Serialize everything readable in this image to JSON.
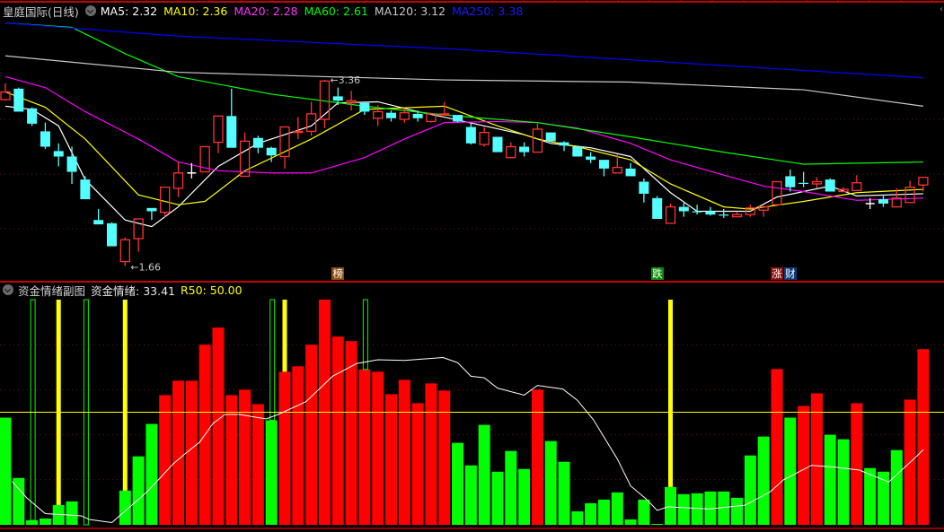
{
  "header": {
    "title": "皇庭国际(日线)",
    "ma": [
      {
        "label": "MA5: 2.32",
        "color": "#ffffff"
      },
      {
        "label": "MA10: 2.36",
        "color": "#ffff00"
      },
      {
        "label": "MA20: 2.28",
        "color": "#ff33ff"
      },
      {
        "label": "MA60: 2.61",
        "color": "#00ff00"
      },
      {
        "label": "MA120: 3.12",
        "color": "#c8c8c8"
      },
      {
        "label": "MA250: 3.38",
        "color": "#1a1aff"
      }
    ]
  },
  "indicator_header": {
    "title": "资金情绪副图",
    "value_label": "资金情绪: 33.41",
    "r50_label": "R50: 50.00"
  },
  "markers": [
    {
      "text": "榜",
      "index": 25,
      "color": "#8a4a12"
    },
    {
      "text": "跌",
      "index": 49,
      "color": "#0a8a0a"
    },
    {
      "text": "涨",
      "index": 58,
      "color": "#8a0a0a"
    },
    {
      "text": "财",
      "index": 59,
      "color": "#0a3a7a"
    }
  ],
  "chart_data": [
    {
      "type": "candlestick",
      "gridlines": [
        3.0,
        2.5,
        2.0
      ],
      "annotations": [
        {
          "text": "3.36",
          "index": 24,
          "value": 3.36,
          "kind": "high"
        },
        {
          "text": "1.66",
          "index": 9,
          "value": 1.66,
          "kind": "low"
        }
      ],
      "colors": {
        "up": "#ff3232",
        "down": "#54ffff",
        "flat": "#ffffff"
      },
      "ohlc": [
        [
          3.18,
          3.33,
          3.17,
          3.25
        ],
        [
          3.28,
          3.29,
          3.07,
          3.07
        ],
        [
          3.1,
          3.11,
          2.94,
          2.96
        ],
        [
          2.89,
          2.97,
          2.73,
          2.75
        ],
        [
          2.71,
          2.78,
          2.57,
          2.66
        ],
        [
          2.66,
          2.75,
          2.41,
          2.52
        ],
        [
          2.45,
          2.48,
          2.27,
          2.27
        ],
        [
          2.08,
          2.18,
          2.04,
          2.04
        ],
        [
          2.05,
          2.06,
          1.84,
          1.84
        ],
        [
          1.7,
          1.92,
          1.66,
          1.9
        ],
        [
          1.91,
          2.09,
          1.79,
          2.09
        ],
        [
          2.19,
          2.19,
          2.08,
          2.16
        ],
        [
          2.15,
          2.38,
          2.11,
          2.38
        ],
        [
          2.37,
          2.61,
          2.29,
          2.51
        ],
        [
          2.51,
          2.6,
          2.46,
          2.51
        ],
        [
          2.52,
          2.75,
          2.52,
          2.75
        ],
        [
          2.79,
          3.03,
          2.69,
          3.03
        ],
        [
          3.03,
          3.28,
          2.74,
          2.74
        ],
        [
          2.48,
          2.88,
          2.48,
          2.8
        ],
        [
          2.83,
          2.85,
          2.69,
          2.74
        ],
        [
          2.74,
          2.75,
          2.61,
          2.67
        ],
        [
          2.66,
          2.93,
          2.55,
          2.93
        ],
        [
          2.88,
          3.02,
          2.82,
          2.89
        ],
        [
          2.89,
          3.16,
          2.85,
          3.05
        ],
        [
          3.0,
          3.36,
          2.92,
          3.35
        ],
        [
          3.21,
          3.29,
          3.13,
          3.17
        ],
        [
          3.15,
          3.26,
          3.08,
          3.17
        ],
        [
          3.15,
          3.15,
          3.04,
          3.07
        ],
        [
          3.01,
          3.13,
          2.94,
          3.07
        ],
        [
          3.06,
          3.08,
          2.98,
          3.01
        ],
        [
          3.0,
          3.1,
          2.97,
          3.06
        ],
        [
          3.05,
          3.08,
          2.98,
          3.01
        ],
        [
          2.98,
          3.05,
          2.97,
          3.05
        ],
        [
          3.04,
          3.16,
          3.04,
          3.05
        ],
        [
          3.04,
          3.04,
          2.97,
          2.98
        ],
        [
          2.93,
          2.96,
          2.77,
          2.78
        ],
        [
          2.77,
          2.93,
          2.75,
          2.88
        ],
        [
          2.84,
          2.84,
          2.7,
          2.7
        ],
        [
          2.65,
          2.79,
          2.65,
          2.75
        ],
        [
          2.75,
          2.79,
          2.66,
          2.7
        ],
        [
          2.7,
          2.96,
          2.7,
          2.91
        ],
        [
          2.88,
          2.88,
          2.79,
          2.8
        ],
        [
          2.79,
          2.8,
          2.71,
          2.76
        ],
        [
          2.75,
          2.75,
          2.66,
          2.66
        ],
        [
          2.66,
          2.7,
          2.6,
          2.63
        ],
        [
          2.63,
          2.63,
          2.48,
          2.55
        ],
        [
          2.51,
          2.68,
          2.51,
          2.56
        ],
        [
          2.55,
          2.6,
          2.48,
          2.48
        ],
        [
          2.43,
          2.46,
          2.24,
          2.32
        ],
        [
          2.28,
          2.3,
          2.09,
          2.09
        ],
        [
          2.05,
          2.23,
          2.05,
          2.2
        ],
        [
          2.2,
          2.25,
          2.11,
          2.16
        ],
        [
          2.16,
          2.22,
          2.13,
          2.15
        ],
        [
          2.16,
          2.2,
          2.12,
          2.13
        ],
        [
          2.13,
          2.18,
          2.1,
          2.12
        ],
        [
          2.11,
          2.15,
          2.11,
          2.13
        ],
        [
          2.13,
          2.22,
          2.11,
          2.19
        ],
        [
          2.17,
          2.21,
          2.11,
          2.2
        ],
        [
          2.22,
          2.43,
          2.22,
          2.43
        ],
        [
          2.48,
          2.54,
          2.34,
          2.38
        ],
        [
          2.42,
          2.52,
          2.38,
          2.41
        ],
        [
          2.41,
          2.47,
          2.37,
          2.43
        ],
        [
          2.45,
          2.46,
          2.34,
          2.34
        ],
        [
          2.34,
          2.38,
          2.34,
          2.36
        ],
        [
          2.35,
          2.49,
          2.35,
          2.42
        ],
        [
          2.23,
          2.28,
          2.18,
          2.23
        ],
        [
          2.27,
          2.31,
          2.2,
          2.23
        ],
        [
          2.2,
          2.37,
          2.2,
          2.28
        ],
        [
          2.24,
          2.44,
          2.24,
          2.38
        ],
        [
          2.4,
          2.47,
          2.34,
          2.47
        ]
      ],
      "ma_series": [
        {
          "key": "MA5",
          "color": "#ffffff",
          "points": [
            [
              0,
              3.12
            ],
            [
              2,
              3.09
            ],
            [
              4,
              2.94
            ],
            [
              6,
              2.45
            ],
            [
              9,
              2.08
            ],
            [
              11,
              2.02
            ],
            [
              13,
              2.2
            ],
            [
              16,
              2.57
            ],
            [
              19,
              2.78
            ],
            [
              21,
              2.86
            ],
            [
              23,
              2.94
            ],
            [
              25,
              3.15
            ],
            [
              28,
              3.16
            ],
            [
              31,
              3.07
            ],
            [
              33,
              3.02
            ],
            [
              36,
              2.94
            ],
            [
              39,
              2.86
            ],
            [
              41,
              2.78
            ],
            [
              44,
              2.74
            ],
            [
              47,
              2.66
            ],
            [
              50,
              2.33
            ],
            [
              52,
              2.16
            ],
            [
              56,
              2.16
            ],
            [
              58,
              2.29
            ],
            [
              62,
              2.39
            ],
            [
              64,
              2.3
            ],
            [
              69,
              2.32
            ]
          ]
        },
        {
          "key": "MA10",
          "color": "#ffff00",
          "points": [
            [
              0,
              3.25
            ],
            [
              3,
              3.11
            ],
            [
              6,
              2.82
            ],
            [
              10,
              2.31
            ],
            [
              13,
              2.22
            ],
            [
              15,
              2.25
            ],
            [
              18,
              2.53
            ],
            [
              23,
              2.82
            ],
            [
              27,
              3.09
            ],
            [
              33,
              3.12
            ],
            [
              37,
              2.94
            ],
            [
              40,
              2.82
            ],
            [
              43,
              2.75
            ],
            [
              47,
              2.63
            ],
            [
              50,
              2.41
            ],
            [
              54,
              2.2
            ],
            [
              56,
              2.18
            ],
            [
              60,
              2.25
            ],
            [
              64,
              2.33
            ],
            [
              69,
              2.36
            ]
          ]
        },
        {
          "key": "MA20",
          "color": "#ff00ff",
          "points": [
            [
              0,
              3.39
            ],
            [
              3,
              3.29
            ],
            [
              6,
              3.07
            ],
            [
              10,
              2.82
            ],
            [
              13,
              2.61
            ],
            [
              16,
              2.53
            ],
            [
              20,
              2.51
            ],
            [
              23,
              2.51
            ],
            [
              27,
              2.65
            ],
            [
              30,
              2.82
            ],
            [
              33,
              2.97
            ],
            [
              37,
              2.98
            ],
            [
              40,
              2.97
            ],
            [
              43,
              2.92
            ],
            [
              47,
              2.78
            ],
            [
              50,
              2.63
            ],
            [
              54,
              2.49
            ],
            [
              57,
              2.39
            ],
            [
              60,
              2.34
            ],
            [
              64,
              2.26
            ],
            [
              69,
              2.28
            ]
          ]
        },
        {
          "key": "MA60",
          "color": "#00ff00",
          "points": [
            [
              0,
              3.88
            ],
            [
              5,
              3.84
            ],
            [
              9,
              3.6
            ],
            [
              13,
              3.39
            ],
            [
              20,
              3.23
            ],
            [
              27,
              3.12
            ],
            [
              33,
              3.04
            ],
            [
              40,
              2.97
            ],
            [
              47,
              2.84
            ],
            [
              54,
              2.7
            ],
            [
              60,
              2.59
            ],
            [
              69,
              2.61
            ]
          ]
        },
        {
          "key": "MA120",
          "color": "#c8c8c8",
          "points": [
            [
              0,
              3.58
            ],
            [
              13,
              3.43
            ],
            [
              24,
              3.39
            ],
            [
              33,
              3.36
            ],
            [
              47,
              3.34
            ],
            [
              60,
              3.27
            ],
            [
              69,
              3.12
            ]
          ]
        },
        {
          "key": "MA250",
          "color": "#0000ff",
          "points": [
            [
              0,
              3.88
            ],
            [
              13,
              3.76
            ],
            [
              34,
              3.64
            ],
            [
              69,
              3.38
            ]
          ]
        }
      ]
    },
    {
      "type": "bar",
      "ylim": [
        0,
        100
      ],
      "gridlines": [
        80,
        60,
        40,
        20
      ],
      "reference_line": {
        "value": 50,
        "color": "#ffff00"
      },
      "values": [
        47.6,
        20.8,
        2.0,
        2.8,
        8.8,
        10.4,
        0,
        0,
        0,
        15.2,
        30.4,
        44.8,
        57.6,
        64,
        64,
        80,
        87.6,
        57.6,
        60,
        53.6,
        46.4,
        68,
        70.4,
        80,
        100,
        83.6,
        81.6,
        69,
        68,
        58,
        64.4,
        54,
        62.8,
        59.6,
        36.4,
        26.4,
        44.4,
        23.6,
        32.8,
        24.8,
        60,
        37.2,
        28,
        6,
        9.6,
        11.2,
        14.4,
        2.4,
        11.2,
        0.4,
        16.8,
        13.6,
        14,
        14.8,
        14.8,
        12,
        30.8,
        39.2,
        69.2,
        47.6,
        52.8,
        58.4,
        40,
        38,
        54,
        25.2,
        23.6,
        33.2,
        55.6,
        78
      ],
      "bar_colors": [
        "g",
        "g",
        "g",
        "g",
        "g",
        "g",
        "g",
        "g",
        "g",
        "g",
        "g",
        "g",
        "r",
        "r",
        "r",
        "r",
        "r",
        "r",
        "r",
        "r",
        "g",
        "r",
        "r",
        "r",
        "r",
        "r",
        "r",
        "r",
        "r",
        "r",
        "r",
        "r",
        "r",
        "r",
        "g",
        "g",
        "g",
        "g",
        "g",
        "g",
        "r",
        "g",
        "g",
        "g",
        "g",
        "g",
        "g",
        "g",
        "g",
        "g",
        "g",
        "g",
        "g",
        "g",
        "g",
        "g",
        "g",
        "g",
        "r",
        "g",
        "r",
        "r",
        "g",
        "g",
        "r",
        "g",
        "g",
        "g",
        "r",
        "r"
      ],
      "colors": {
        "r": "#ff0000",
        "g": "#00ff00"
      },
      "signals_yellow": [
        4,
        9,
        21,
        50
      ],
      "signals_hollow_green": [
        2,
        6,
        20,
        27
      ],
      "line": {
        "color": "#ffffff",
        "points": [
          [
            0.5,
            19.3
          ],
          [
            1.6,
            12
          ],
          [
            3,
            5
          ],
          [
            5.7,
            4
          ],
          [
            6.3,
            2.4
          ],
          [
            8,
            1
          ],
          [
            9.5,
            8.7
          ],
          [
            10.6,
            14.4
          ],
          [
            11.5,
            20
          ],
          [
            12.6,
            27
          ],
          [
            13.6,
            32
          ],
          [
            14.6,
            36.7
          ],
          [
            15.6,
            45
          ],
          [
            16.5,
            49
          ],
          [
            17.6,
            49
          ],
          [
            19.6,
            47
          ],
          [
            20.5,
            49
          ],
          [
            22.6,
            54.7
          ],
          [
            24.6,
            66
          ],
          [
            26.4,
            71.6
          ],
          [
            28,
            73.3
          ],
          [
            30,
            73
          ],
          [
            32.9,
            74.3
          ],
          [
            34,
            72
          ],
          [
            35,
            66
          ],
          [
            36,
            65.3
          ],
          [
            37,
            60.7
          ],
          [
            39,
            57.6
          ],
          [
            40,
            61.9
          ],
          [
            41.9,
            60.3
          ],
          [
            43,
            55.3
          ],
          [
            44.2,
            46.7
          ],
          [
            46,
            29.3
          ],
          [
            47,
            17.3
          ],
          [
            48.2,
            11.3
          ],
          [
            49,
            6.4
          ],
          [
            49.8,
            8
          ],
          [
            52.9,
            7
          ],
          [
            55.6,
            8.7
          ],
          [
            57.5,
            14.7
          ],
          [
            58.5,
            20
          ],
          [
            60.6,
            26.4
          ],
          [
            62.4,
            25.6
          ],
          [
            64.2,
            24.3
          ],
          [
            66.4,
            19
          ],
          [
            68.5,
            30.4
          ],
          [
            69,
            33.41
          ]
        ]
      }
    }
  ]
}
